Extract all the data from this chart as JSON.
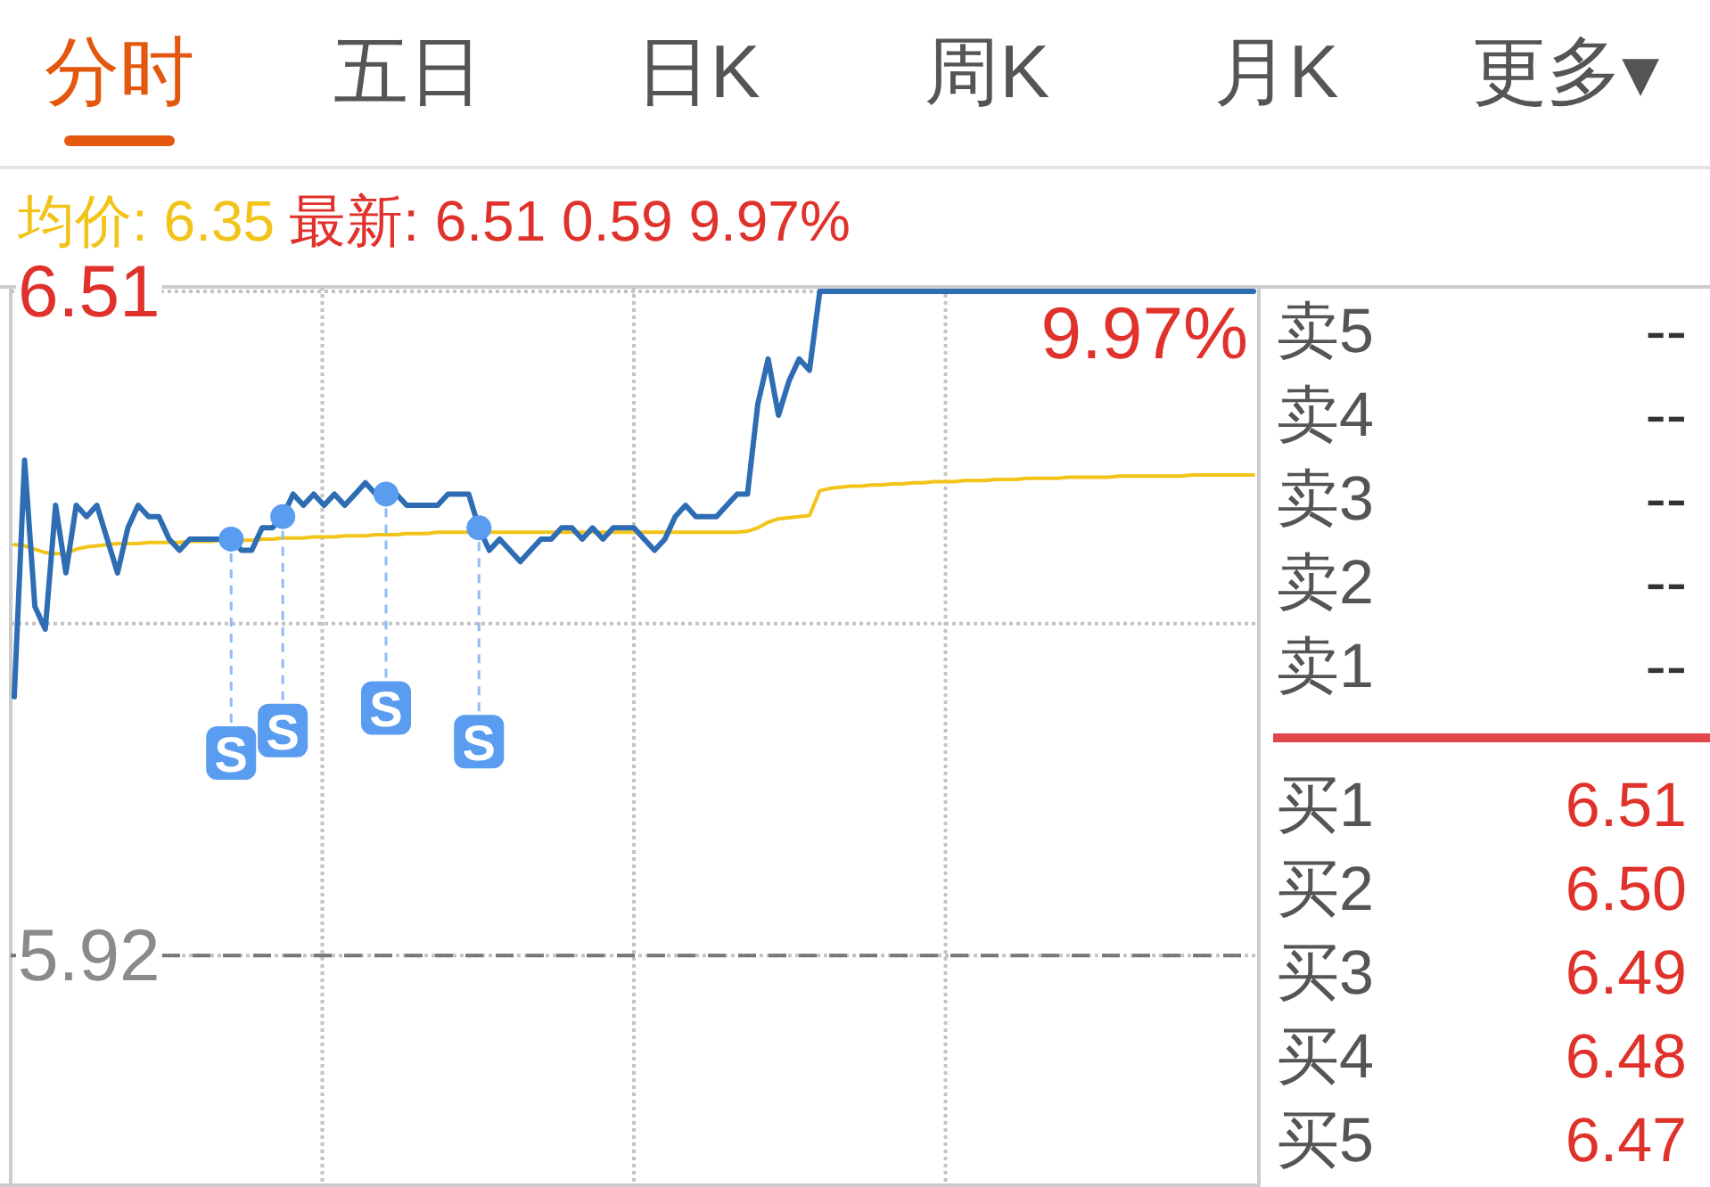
{
  "chart_data": [
    {
      "type": "other",
      "categories": [
        "分时",
        "五日",
        "日K",
        "周K",
        "月K",
        "更多▾"
      ],
      "colors": [
        "#e4570e",
        "#555555",
        "#555555",
        "#555555",
        "#555555",
        "#555555"
      ]
    },
    {
      "type": "line",
      "subtitle": "最新: 6.51 0.59 9.97%",
      "legend": "top left",
      "grid": true,
      "categories": [
        null,
        null,
        null,
        null,
        null,
        null,
        null,
        null,
        null,
        null,
        null,
        null,
        null,
        null,
        null,
        null,
        null,
        null,
        null,
        null,
        null,
        null,
        null,
        null,
        null,
        null,
        null,
        null,
        null,
        null,
        null,
        null,
        null,
        null,
        null,
        null,
        null,
        null,
        null,
        null,
        null,
        null,
        null,
        null,
        null,
        null,
        null,
        null,
        null,
        null,
        null,
        null,
        null,
        null,
        null,
        null,
        null,
        null,
        null,
        null,
        null,
        null,
        null,
        null,
        null,
        null,
        null,
        null,
        null,
        null,
        null,
        null,
        null,
        null,
        null,
        null,
        null,
        null,
        null,
        null,
        null,
        null,
        null,
        null,
        null,
        null,
        null,
        null,
        null,
        null,
        null,
        null,
        null,
        null,
        null,
        null,
        null,
        null,
        null,
        null,
        null,
        null,
        null,
        null,
        null,
        null,
        null,
        null,
        null,
        null,
        null,
        null,
        null,
        null,
        null,
        null,
        null,
        null,
        null,
        null,
        null
      ],
      "ylim": [
        5.716,
        6.514
      ],
      "yticks": [
        6.51,
        {
          "value": 6.215,
          "label": null
        },
        5.92
      ],
      "ref_lines": [
        {
          "axis": "y",
          "value": 5.92,
          "color": "#777777",
          "line_style": "dashed"
        }
      ],
      "annotations": [
        {
          "text": "9.97%",
          "y": 6.51
        }
      ],
      "series": [
        {
          "name": "均价: 6.35",
          "color": "#f2c318",
          "values": [
            6.285,
            6.284,
            6.281,
            6.278,
            6.277,
            6.277,
            6.281,
            6.283,
            6.284,
            6.285,
            6.286,
            6.286,
            6.286,
            6.287,
            6.287,
            6.287,
            6.287,
            6.288,
            6.288,
            6.288,
            6.289,
            6.289,
            6.289,
            6.289,
            6.29,
            6.29,
            6.291,
            6.291,
            6.291,
            6.292,
            6.292,
            6.292,
            6.293,
            6.293,
            6.293,
            6.294,
            6.294,
            6.294,
            6.295,
            6.295,
            6.295,
            6.296,
            6.296,
            6.296,
            6.296,
            6.296,
            6.296,
            6.296,
            6.296,
            6.296,
            6.296,
            6.296,
            6.296,
            6.296,
            6.296,
            6.296,
            6.296,
            6.296,
            6.296,
            6.296,
            6.296,
            6.296,
            6.296,
            6.296,
            6.296,
            6.296,
            6.296,
            6.296,
            6.296,
            6.296,
            6.296,
            6.297,
            6.3,
            6.305,
            6.308,
            6.309,
            6.31,
            6.311,
            6.333,
            6.335,
            6.336,
            6.337,
            6.337,
            6.338,
            6.338,
            6.339,
            6.339,
            6.34,
            6.34,
            6.341,
            6.341,
            6.341,
            6.342,
            6.342,
            6.342,
            6.343,
            6.343,
            6.343,
            6.344,
            6.344,
            6.344,
            6.344,
            6.345,
            6.345,
            6.345,
            6.345,
            6.345,
            6.346,
            6.346,
            6.346,
            6.346,
            6.346,
            6.346,
            6.346,
            6.347,
            6.347,
            6.347,
            6.347,
            6.347,
            6.347,
            6.347
          ]
        },
        {
          "color": "#2e6db4",
          "values": [
            6.15,
            6.36,
            6.23,
            6.21,
            6.32,
            6.26,
            6.32,
            6.31,
            6.32,
            6.29,
            6.26,
            6.3,
            6.32,
            6.31,
            6.31,
            6.29,
            6.28,
            6.29,
            6.29,
            6.29,
            6.29,
            6.29,
            6.28,
            6.28,
            6.3,
            6.3,
            6.31,
            6.33,
            6.32,
            6.33,
            6.32,
            6.33,
            6.32,
            6.33,
            6.34,
            6.33,
            6.33,
            6.33,
            6.32,
            6.32,
            6.32,
            6.32,
            6.33,
            6.33,
            6.33,
            6.3,
            6.28,
            6.29,
            6.28,
            6.27,
            6.28,
            6.29,
            6.29,
            6.3,
            6.3,
            6.29,
            6.3,
            6.29,
            6.3,
            6.3,
            6.3,
            6.29,
            6.28,
            6.29,
            6.31,
            6.32,
            6.31,
            6.31,
            6.31,
            6.32,
            6.33,
            6.33,
            6.41,
            6.45,
            6.4,
            6.43,
            6.45,
            6.44,
            6.51,
            6.51,
            6.51,
            6.51,
            6.51,
            6.51,
            6.51,
            6.51,
            6.51,
            6.51,
            6.51,
            6.51,
            6.51,
            6.51,
            6.51,
            6.51,
            6.51,
            6.51,
            6.51,
            6.51,
            6.51,
            6.51,
            6.51,
            6.51,
            6.51,
            6.51,
            6.51,
            6.51,
            6.51,
            6.51,
            6.51,
            6.51,
            6.51,
            6.51,
            6.51,
            6.51,
            6.51,
            6.51,
            6.51,
            6.51,
            6.51,
            6.51,
            6.51
          ]
        },
        {
          "type": "scatter",
          "color": "#5a9cf0",
          "values": [
            null,
            null,
            null,
            null,
            null,
            null,
            null,
            null,
            null,
            null,
            null,
            null,
            null,
            null,
            null,
            null,
            null,
            null,
            null,
            null,
            null,
            6.29,
            null,
            null,
            null,
            null,
            6.31,
            null,
            null,
            null,
            null,
            null,
            null,
            null,
            null,
            null,
            6.33,
            null,
            null,
            null,
            null,
            null,
            null,
            null,
            null,
            6.3,
            null,
            null,
            null,
            null,
            null,
            null,
            null,
            null,
            null,
            null,
            null,
            null,
            null,
            null,
            null,
            null,
            null,
            null,
            null,
            null,
            null,
            null,
            null,
            null,
            null,
            null,
            null,
            null,
            null,
            null,
            null,
            null,
            null,
            null,
            null,
            null,
            null,
            null,
            null,
            null,
            null,
            null,
            null,
            null,
            null,
            null,
            null,
            null,
            null,
            null,
            null,
            null,
            null,
            null,
            null,
            null,
            null,
            null,
            null,
            null,
            null,
            null,
            null,
            null,
            null,
            null,
            null,
            null,
            null,
            null,
            null,
            null,
            null,
            null,
            null
          ],
          "value_labels": [
            null,
            null,
            null,
            null,
            null,
            null,
            null,
            null,
            null,
            null,
            null,
            null,
            null,
            null,
            null,
            null,
            null,
            null,
            null,
            null,
            null,
            "S",
            null,
            null,
            null,
            null,
            "S",
            null,
            null,
            null,
            null,
            null,
            null,
            null,
            null,
            null,
            "S",
            null,
            null,
            null,
            null,
            null,
            null,
            null,
            null,
            "S",
            null,
            null,
            null,
            null,
            null,
            null,
            null,
            null,
            null,
            null,
            null,
            null,
            null,
            null,
            null,
            null,
            null,
            null,
            null,
            null,
            null,
            null,
            null,
            null,
            null,
            null,
            null,
            null,
            null,
            null,
            null,
            null,
            null,
            null,
            null,
            null,
            null,
            null,
            null,
            null,
            null,
            null,
            null,
            null,
            null,
            null,
            null,
            null,
            null,
            null,
            null,
            null,
            null,
            null,
            null,
            null,
            null,
            null,
            null,
            null,
            null,
            null,
            null,
            null,
            null,
            null,
            null,
            null,
            null,
            null,
            null,
            null,
            null,
            null,
            null
          ]
        }
      ]
    },
    {
      "type": "other",
      "categories": [
        "卖5",
        "卖4",
        "卖3",
        "卖2",
        "卖1",
        "买1",
        "买2",
        "买3",
        "买4",
        "买5"
      ],
      "values": [
        null,
        null,
        null,
        null,
        null,
        6.51,
        6.5,
        6.49,
        6.48,
        6.47
      ],
      "value_labels": [
        "--",
        "--",
        "--",
        "--",
        "--",
        "6.51",
        "6.50",
        "6.49",
        "6.48",
        "6.47"
      ],
      "colors": [
        "#333333",
        "#333333",
        "#333333",
        "#333333",
        "#333333",
        "#e0312b",
        "#e0312b",
        "#e0312b",
        "#e0312b",
        "#e0312b"
      ]
    }
  ]
}
